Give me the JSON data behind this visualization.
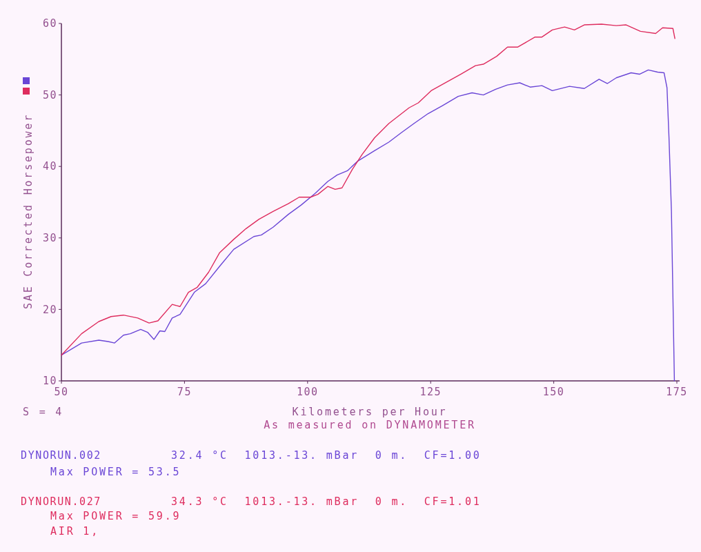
{
  "chart_data": {
    "type": "line",
    "xlabel": "Kilometers per Hour",
    "ylabel": "SAE Corrected Horsepower",
    "annotations": [
      "S = 4",
      "As measured on DYNAMOMETER",
      "32.4 °C  1013.-13. mBar  0 m.  CF=1.00",
      "Max POWER = 53.5",
      "34.3 °C  1013.-13. mBar  0 m.  CF=1.01",
      "Max POWER = 59.9",
      "AIR 1,"
    ],
    "xlim": [
      50,
      175
    ],
    "ylim": [
      10,
      60
    ],
    "xticks": [
      50,
      75,
      100,
      125,
      150,
      175
    ],
    "yticks": [
      10,
      20,
      30,
      40,
      50,
      60
    ],
    "legend": "left",
    "series": [
      {
        "name": "DYNORUN.002",
        "color": "#6a46d6",
        "x": [
          50,
          54.1,
          57.6,
          59.5,
          60.8,
          62.6,
          64.0,
          66.1,
          67.5,
          68.8,
          70.0,
          71.0,
          72.5,
          74.1,
          77.0,
          79.3,
          82.1,
          85.0,
          89.1,
          90.6,
          93.0,
          96.1,
          98.7,
          101.5,
          104.1,
          106.0,
          108.1,
          110.1,
          113.6,
          116.5,
          119.0,
          121.6,
          124.5,
          127.4,
          130.6,
          133.4,
          135.7,
          138.2,
          140.6,
          143.1,
          145.2,
          147.6,
          149.7,
          153.2,
          156.2,
          159.2,
          160.9,
          162.7,
          165.7,
          167.4,
          169.2,
          171.1,
          172.4,
          173.0,
          173.4,
          173.9,
          174.5
        ],
        "values": [
          13.6,
          15.3,
          15.7,
          15.5,
          15.3,
          16.4,
          16.6,
          17.2,
          16.8,
          15.8,
          17.0,
          16.9,
          18.8,
          19.3,
          22.4,
          23.6,
          26.0,
          28.4,
          30.2,
          30.4,
          31.5,
          33.3,
          34.6,
          36.2,
          37.9,
          38.8,
          39.4,
          40.7,
          42.2,
          43.4,
          44.7,
          46.0,
          47.4,
          48.5,
          49.8,
          50.3,
          50.0,
          50.8,
          51.4,
          51.7,
          51.1,
          51.3,
          50.6,
          51.2,
          50.9,
          52.2,
          51.6,
          52.4,
          53.1,
          52.9,
          53.5,
          53.2,
          53.1,
          51.0,
          44.1,
          33.7,
          10
        ]
      },
      {
        "name": "DYNORUN.027",
        "color": "#de2c5e",
        "x": [
          50,
          54.1,
          57.6,
          60.1,
          62.6,
          65.5,
          67.8,
          69.6,
          72.5,
          74.1,
          75.8,
          77.6,
          79.9,
          82.1,
          85.0,
          87.5,
          90.1,
          93.0,
          96.1,
          98.3,
          100.6,
          102.1,
          104.1,
          105.6,
          107.0,
          109.1,
          111.1,
          113.6,
          116.5,
          120.6,
          122.5,
          125.1,
          128.0,
          131.1,
          134.1,
          135.7,
          138.4,
          140.6,
          142.7,
          146.2,
          147.6,
          149.7,
          152.2,
          154.2,
          156.2,
          159.7,
          162.7,
          164.7,
          167.6,
          170.7,
          172.1,
          174.2,
          174.6
        ],
        "values": [
          13.6,
          16.6,
          18.3,
          19.0,
          19.2,
          18.8,
          18.1,
          18.4,
          20.7,
          20.4,
          22.4,
          23.1,
          25.2,
          27.9,
          29.8,
          31.3,
          32.6,
          33.7,
          34.8,
          35.7,
          35.7,
          36.1,
          37.2,
          36.8,
          37.0,
          39.6,
          41.7,
          44.0,
          46.0,
          48.2,
          48.9,
          50.6,
          51.7,
          52.9,
          54.1,
          54.3,
          55.4,
          56.7,
          56.7,
          58.1,
          58.1,
          59.1,
          59.5,
          59.1,
          59.8,
          59.9,
          59.7,
          59.8,
          58.9,
          58.6,
          59.4,
          59.3,
          57.9
        ]
      }
    ]
  }
}
